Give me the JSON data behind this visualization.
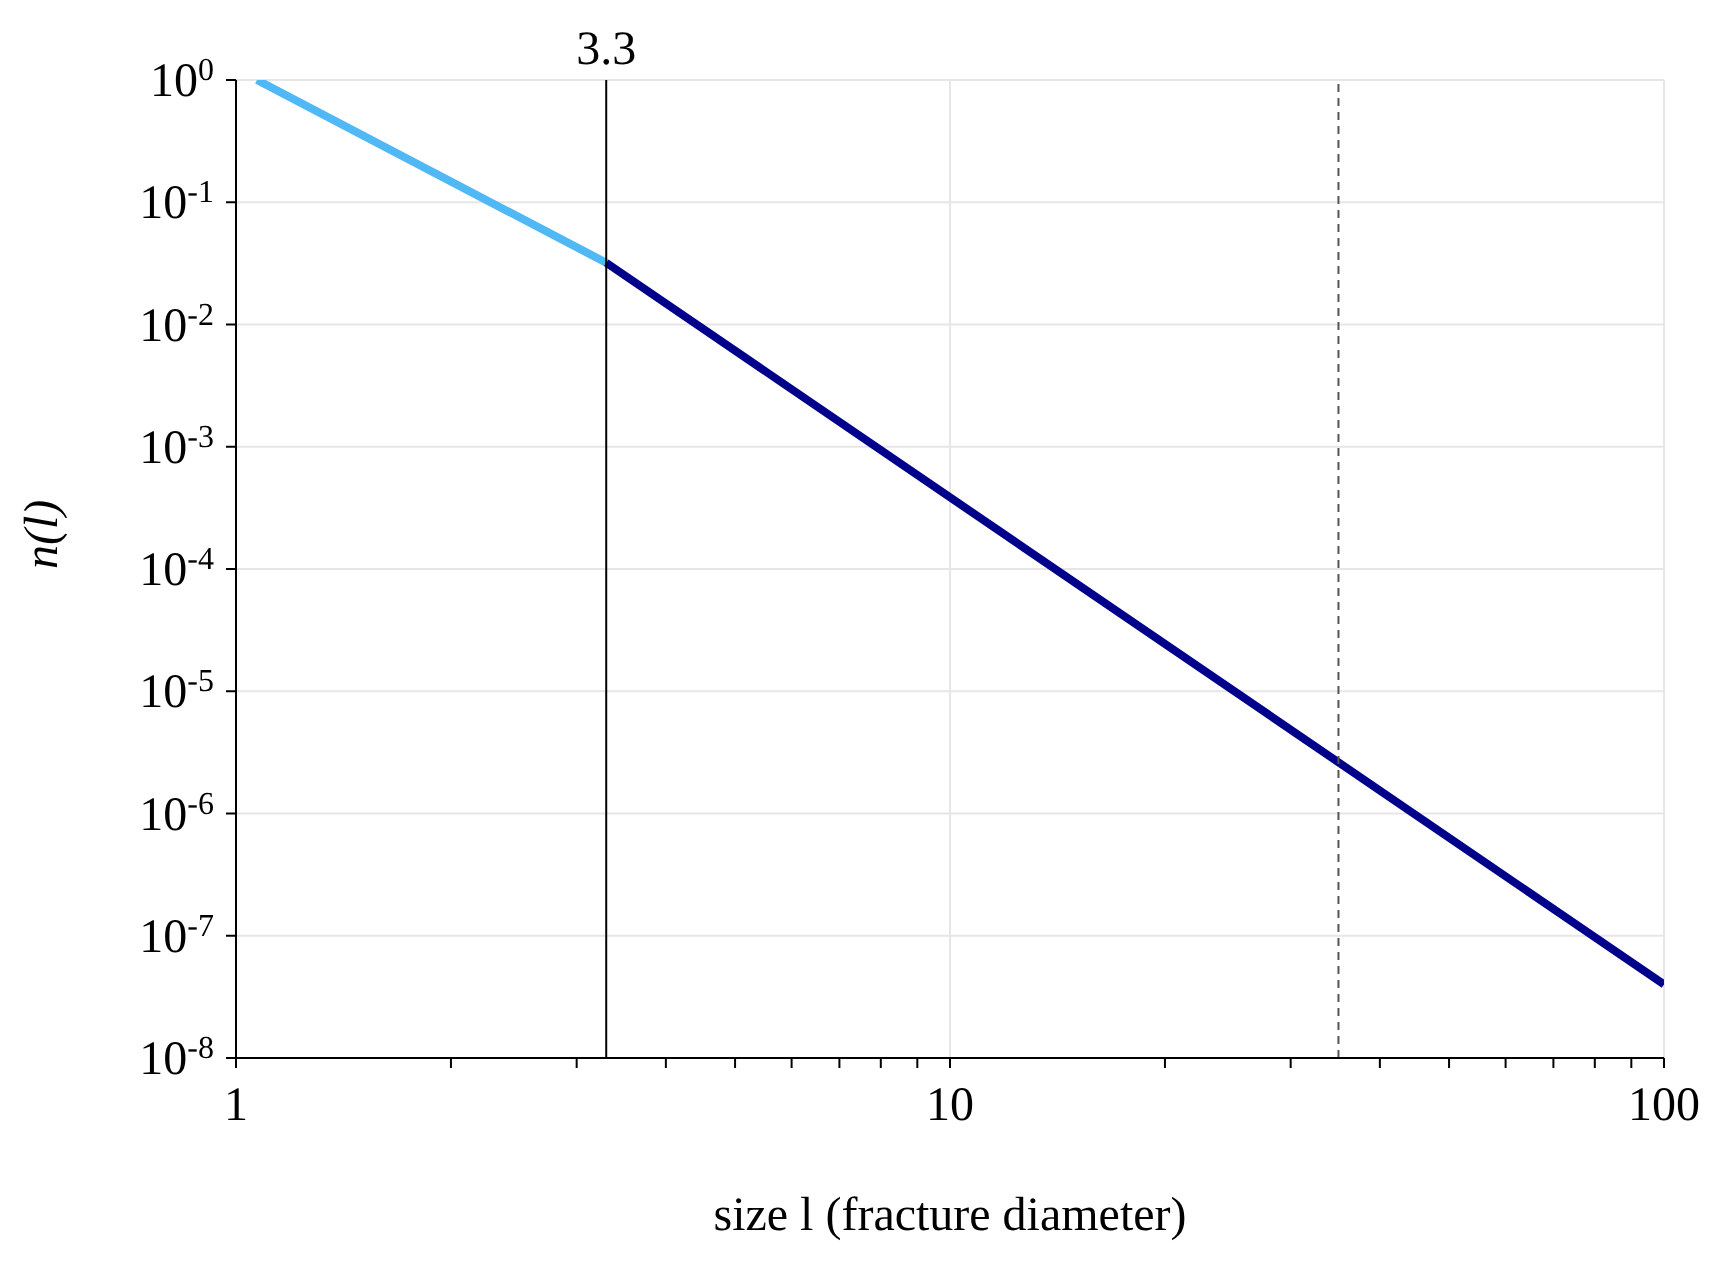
{
  "chart_data": {
    "type": "line",
    "xlabel": "size l (fracture diameter)",
    "ylabel": "n(l)",
    "series": [
      {
        "color": "#4fb8f5",
        "x": [
          1.07,
          3.3
        ],
        "values": [
          1,
          0.032
        ]
      },
      {
        "color": "#00008b",
        "x": [
          3.3,
          100
        ],
        "values": [
          0.032,
          4e-08
        ]
      }
    ],
    "log": "xy",
    "xlim": [
      1,
      100
    ],
    "ylim": [
      1e-08,
      1
    ],
    "xticks": [
      1,
      {
        "value": 2,
        "label": null
      },
      {
        "value": 3,
        "label": null
      },
      {
        "value": 4,
        "label": null
      },
      {
        "value": 5,
        "label": null
      },
      {
        "value": 6,
        "label": null
      },
      {
        "value": 7,
        "label": null
      },
      {
        "value": 8,
        "label": null
      },
      {
        "value": 9,
        "label": null
      },
      10,
      {
        "value": 20,
        "label": null
      },
      {
        "value": 30,
        "label": null
      },
      {
        "value": 40,
        "label": null
      },
      {
        "value": 50,
        "label": null
      },
      {
        "value": 60,
        "label": null
      },
      {
        "value": 70,
        "label": null
      },
      {
        "value": 80,
        "label": null
      },
      {
        "value": 90,
        "label": null
      },
      100
    ],
    "yticks": [
      {
        "value": 1e-08,
        "label": "10$^{-8}$"
      },
      {
        "value": 1e-07,
        "label": "10$^{-7}$"
      },
      {
        "value": 1e-06,
        "label": "10$^{-6}$"
      },
      {
        "value": 1e-05,
        "label": "10$^{-5}$"
      },
      {
        "value": 0.0001,
        "label": "10$^{-4}$"
      },
      {
        "value": 0.001,
        "label": "10$^{-3}$"
      },
      {
        "value": 0.01,
        "label": "10$^{-2}$"
      },
      {
        "value": 0.1,
        "label": "10$^{-1}$"
      },
      {
        "value": 1,
        "label": "10$^{0}$"
      }
    ],
    "ref_lines": [
      {
        "axis": "x",
        "value": 3.3,
        "label": "3.3",
        "color": "#000000",
        "line_style": "solid"
      },
      {
        "axis": "x",
        "value": 35,
        "color": "#555555",
        "line_style": "dashed"
      }
    ],
    "grid": true,
    "marker": "none",
    "line_style": "solid"
  }
}
